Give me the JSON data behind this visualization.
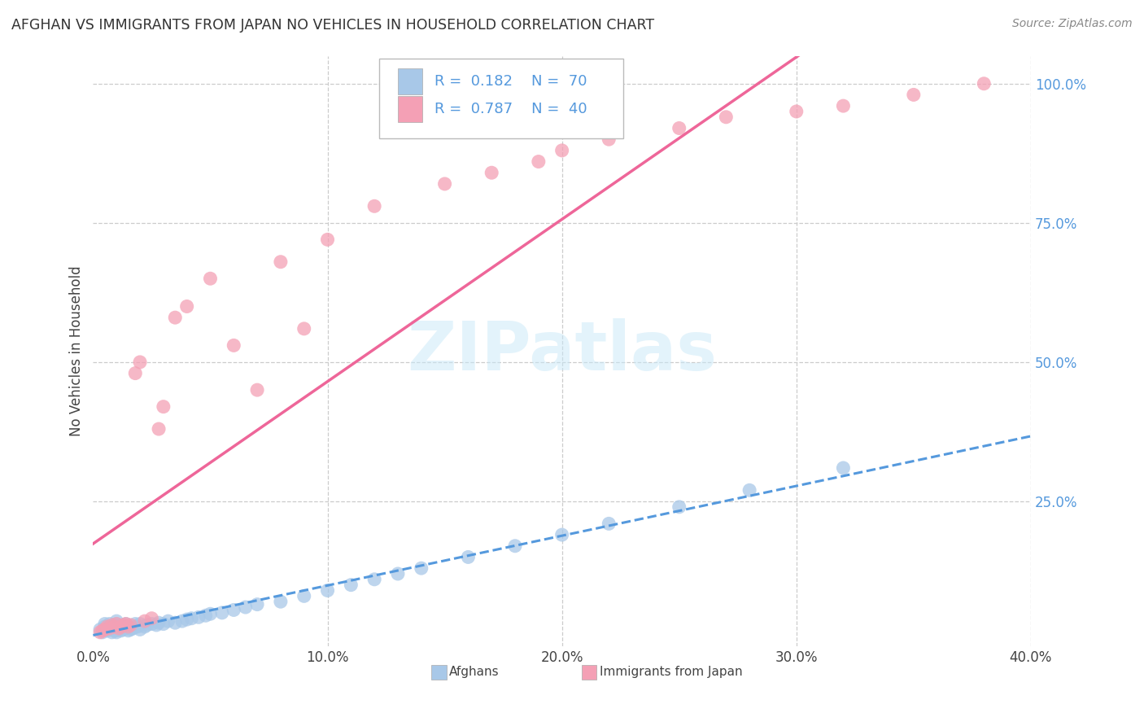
{
  "title": "AFGHAN VS IMMIGRANTS FROM JAPAN NO VEHICLES IN HOUSEHOLD CORRELATION CHART",
  "source": "Source: ZipAtlas.com",
  "ylabel": "No Vehicles in Household",
  "xlim": [
    0.0,
    0.4
  ],
  "ylim": [
    -0.01,
    1.05
  ],
  "xtick_labels": [
    "0.0%",
    "10.0%",
    "20.0%",
    "30.0%",
    "40.0%"
  ],
  "xtick_vals": [
    0.0,
    0.1,
    0.2,
    0.3,
    0.4
  ],
  "afghan_R": 0.182,
  "afghan_N": 70,
  "japan_R": 0.787,
  "japan_N": 40,
  "afghan_color": "#a8c8e8",
  "japan_color": "#f4a0b5",
  "afghan_line_color": "#5599dd",
  "japan_line_color": "#ee6699",
  "right_tick_color": "#5599dd",
  "watermark_text": "ZIPatlas",
  "watermark_color": "#c8e8f8",
  "legend_entries": [
    "Afghans",
    "Immigrants from Japan"
  ],
  "background_color": "#ffffff",
  "grid_color": "#cccccc",
  "afghan_x": [
    0.003,
    0.004,
    0.005,
    0.005,
    0.006,
    0.006,
    0.007,
    0.007,
    0.007,
    0.008,
    0.008,
    0.008,
    0.009,
    0.009,
    0.009,
    0.01,
    0.01,
    0.01,
    0.01,
    0.01,
    0.01,
    0.011,
    0.011,
    0.012,
    0.012,
    0.013,
    0.013,
    0.014,
    0.014,
    0.015,
    0.015,
    0.016,
    0.017,
    0.018,
    0.018,
    0.019,
    0.02,
    0.02,
    0.022,
    0.023,
    0.025,
    0.027,
    0.028,
    0.03,
    0.032,
    0.035,
    0.038,
    0.04,
    0.042,
    0.045,
    0.048,
    0.05,
    0.055,
    0.06,
    0.065,
    0.07,
    0.08,
    0.09,
    0.1,
    0.11,
    0.12,
    0.13,
    0.14,
    0.16,
    0.18,
    0.2,
    0.22,
    0.25,
    0.28,
    0.32
  ],
  "afghan_y": [
    0.02,
    0.015,
    0.025,
    0.03,
    0.018,
    0.022,
    0.02,
    0.025,
    0.03,
    0.015,
    0.02,
    0.025,
    0.018,
    0.022,
    0.028,
    0.015,
    0.018,
    0.02,
    0.025,
    0.03,
    0.035,
    0.02,
    0.025,
    0.018,
    0.022,
    0.02,
    0.028,
    0.022,
    0.03,
    0.018,
    0.025,
    0.02,
    0.022,
    0.025,
    0.03,
    0.025,
    0.02,
    0.03,
    0.025,
    0.028,
    0.03,
    0.028,
    0.032,
    0.03,
    0.035,
    0.032,
    0.035,
    0.038,
    0.04,
    0.042,
    0.045,
    0.048,
    0.05,
    0.055,
    0.06,
    0.065,
    0.07,
    0.08,
    0.09,
    0.1,
    0.11,
    0.12,
    0.13,
    0.15,
    0.17,
    0.19,
    0.21,
    0.24,
    0.27,
    0.31
  ],
  "japan_x": [
    0.003,
    0.004,
    0.005,
    0.006,
    0.007,
    0.008,
    0.009,
    0.01,
    0.011,
    0.012,
    0.013,
    0.014,
    0.015,
    0.016,
    0.018,
    0.02,
    0.022,
    0.025,
    0.028,
    0.03,
    0.035,
    0.04,
    0.05,
    0.06,
    0.07,
    0.08,
    0.09,
    0.1,
    0.12,
    0.15,
    0.17,
    0.19,
    0.2,
    0.22,
    0.25,
    0.27,
    0.3,
    0.32,
    0.35,
    0.38
  ],
  "japan_y": [
    0.015,
    0.018,
    0.02,
    0.025,
    0.022,
    0.028,
    0.025,
    0.03,
    0.022,
    0.025,
    0.028,
    0.03,
    0.025,
    0.028,
    0.48,
    0.5,
    0.035,
    0.04,
    0.38,
    0.42,
    0.58,
    0.6,
    0.65,
    0.53,
    0.45,
    0.68,
    0.56,
    0.72,
    0.78,
    0.82,
    0.84,
    0.86,
    0.88,
    0.9,
    0.92,
    0.94,
    0.95,
    0.96,
    0.98,
    1.0
  ]
}
